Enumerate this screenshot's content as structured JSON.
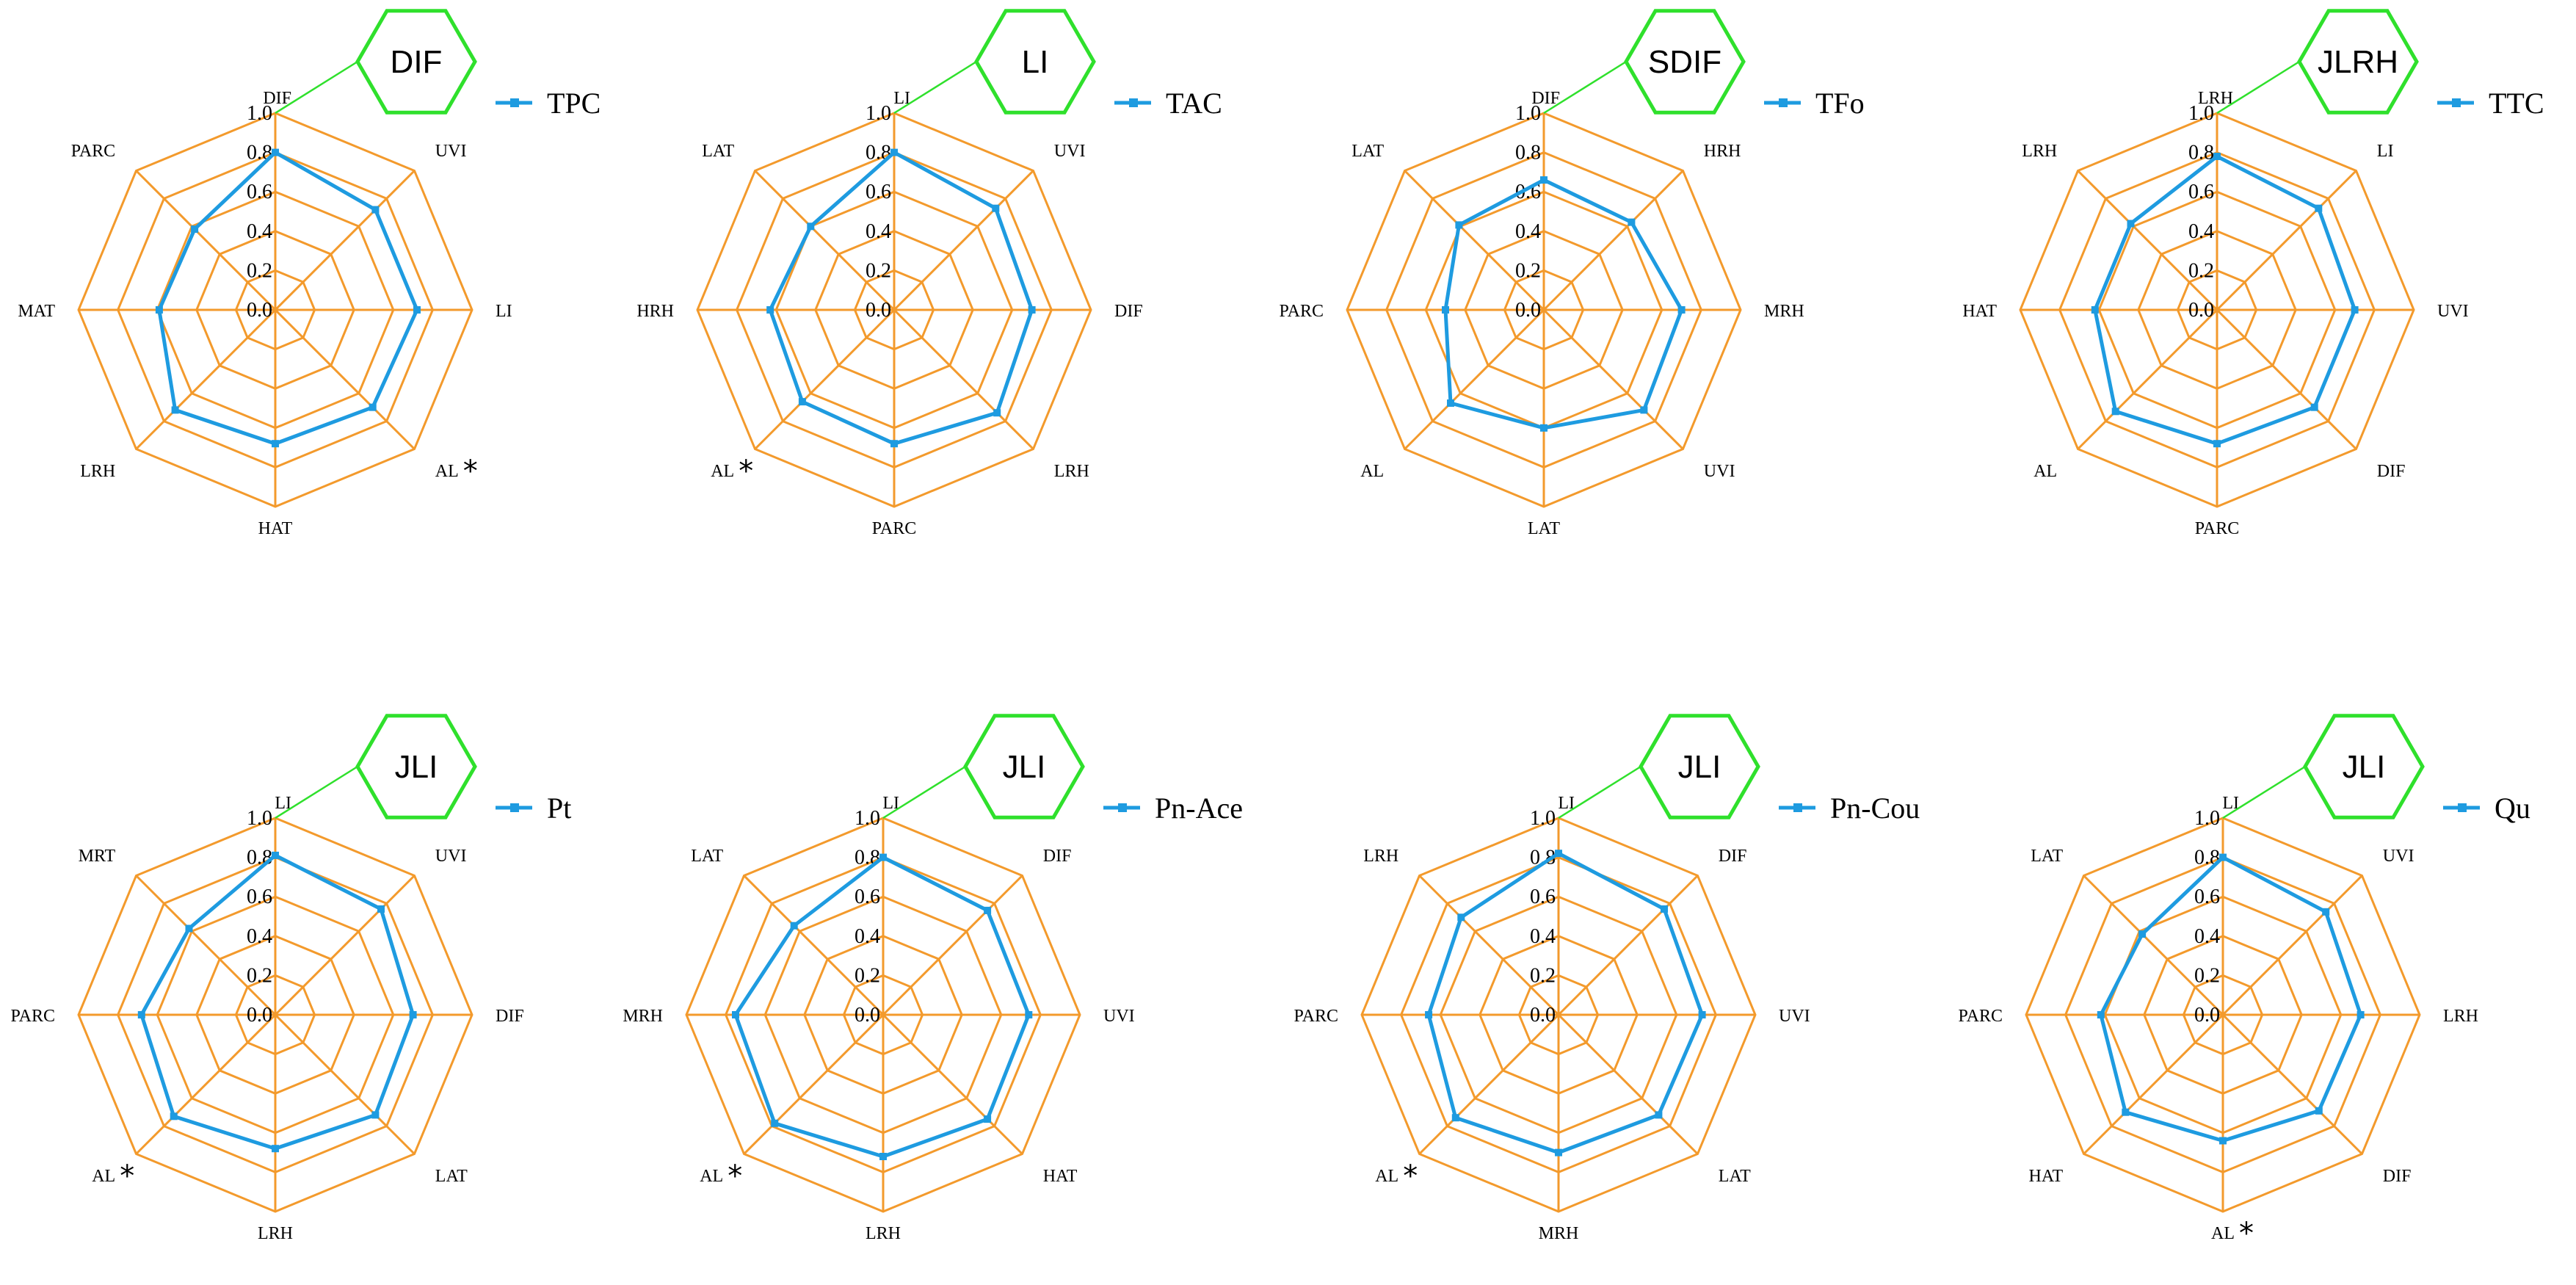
{
  "colors": {
    "grid": "#F39A2C",
    "series": "#1E9BE0",
    "hexagon": "#2FE02C",
    "text": "#000000"
  },
  "icons": {
    "legend_marker": "square-marker-icon",
    "badge": "hexagon-icon"
  },
  "chart_data": [
    {
      "type": "radar",
      "badge": "DIF",
      "series": [
        {
          "name": "TPC",
          "values": [
            0.8,
            0.72,
            0.72,
            0.7,
            0.68,
            0.72,
            0.59,
            0.58
          ]
        }
      ],
      "axes": [
        "DIF",
        "UVI",
        "LI",
        "AL",
        "HAT",
        "LRH",
        "MAT",
        "PARC"
      ],
      "significant": [
        "AL"
      ],
      "ticks": [
        "0.0",
        "0.2",
        "0.4",
        "0.6",
        "0.8",
        "1.0"
      ],
      "rlim": [
        0,
        1
      ],
      "grid": true,
      "legend": "top-right"
    },
    {
      "type": "radar",
      "badge": "LI",
      "series": [
        {
          "name": "TAC",
          "values": [
            0.8,
            0.73,
            0.7,
            0.74,
            0.68,
            0.66,
            0.63,
            0.6
          ]
        }
      ],
      "axes": [
        "LI",
        "UVI",
        "DIF",
        "LRH",
        "PARC",
        "AL",
        "HRH",
        "LAT"
      ],
      "significant": [
        "AL"
      ],
      "ticks": [
        "0.0",
        "0.2",
        "0.4",
        "0.6",
        "0.8",
        "1.0"
      ],
      "rlim": [
        0,
        1
      ],
      "grid": true,
      "legend": "top-right"
    },
    {
      "type": "radar",
      "badge": "SDIF",
      "series": [
        {
          "name": "TFo",
          "values": [
            0.66,
            0.63,
            0.7,
            0.72,
            0.6,
            0.67,
            0.5,
            0.61
          ]
        }
      ],
      "axes": [
        "DIF",
        "HRH",
        "MRH",
        "UVI",
        "LAT",
        "AL",
        "PARC",
        "LAT"
      ],
      "significant": [],
      "ticks": [
        "0.0",
        "0.2",
        "0.4",
        "0.6",
        "0.8",
        "1.0"
      ],
      "rlim": [
        0,
        1
      ],
      "grid": true,
      "legend": "top-right"
    },
    {
      "type": "radar",
      "badge": "JLRH",
      "series": [
        {
          "name": "TTC",
          "values": [
            0.78,
            0.73,
            0.7,
            0.7,
            0.68,
            0.73,
            0.62,
            0.62
          ]
        }
      ],
      "axes": [
        "LRH",
        "LI",
        "UVI",
        "DIF",
        "PARC",
        "AL",
        "HAT",
        "LRH"
      ],
      "significant": [],
      "ticks": [
        "0.0",
        "0.2",
        "0.4",
        "0.6",
        "0.8",
        "1.0"
      ],
      "rlim": [
        0,
        1
      ],
      "grid": true,
      "legend": "top-right"
    },
    {
      "type": "radar",
      "badge": "JLI",
      "series": [
        {
          "name": "Pt",
          "values": [
            0.81,
            0.76,
            0.7,
            0.72,
            0.68,
            0.73,
            0.68,
            0.62
          ]
        }
      ],
      "axes": [
        "LI",
        "UVI",
        "DIF",
        "LAT",
        "LRH",
        "AL",
        "PARC",
        "MRT"
      ],
      "significant": [
        "AL"
      ],
      "ticks": [
        "0.0",
        "0.2",
        "0.4",
        "0.6",
        "0.8",
        "1.0"
      ],
      "rlim": [
        0,
        1
      ],
      "grid": true,
      "legend": "top-right"
    },
    {
      "type": "radar",
      "badge": "JLI",
      "series": [
        {
          "name": "Pn-Ace",
          "values": [
            0.8,
            0.75,
            0.74,
            0.75,
            0.72,
            0.78,
            0.75,
            0.64
          ]
        }
      ],
      "axes": [
        "LI",
        "DIF",
        "UVI",
        "HAT",
        "LRH",
        "AL",
        "MRH",
        "LAT"
      ],
      "significant": [
        "AL"
      ],
      "ticks": [
        "0.0",
        "0.2",
        "0.4",
        "0.6",
        "0.8",
        "1.0"
      ],
      "rlim": [
        0,
        1
      ],
      "grid": true,
      "legend": "top-right"
    },
    {
      "type": "radar",
      "badge": "JLI",
      "series": [
        {
          "name": "Pn-Cou",
          "values": [
            0.82,
            0.76,
            0.73,
            0.72,
            0.7,
            0.74,
            0.66,
            0.7
          ]
        }
      ],
      "axes": [
        "LI",
        "DIF",
        "UVI",
        "LAT",
        "MRH",
        "AL",
        "PARC",
        "LRH"
      ],
      "significant": [
        "AL"
      ],
      "ticks": [
        "0.0",
        "0.2",
        "0.4",
        "0.6",
        "0.8",
        "1.0"
      ],
      "rlim": [
        0,
        1
      ],
      "grid": true,
      "legend": "top-right"
    },
    {
      "type": "radar",
      "badge": "JLI",
      "series": [
        {
          "name": "Qu",
          "values": [
            0.8,
            0.74,
            0.7,
            0.69,
            0.64,
            0.7,
            0.62,
            0.58
          ]
        }
      ],
      "axes": [
        "LI",
        "UVI",
        "LRH",
        "DIF",
        "AL",
        "HAT",
        "PARC",
        "LAT"
      ],
      "significant": [
        "AL"
      ],
      "ticks": [
        "0.0",
        "0.2",
        "0.4",
        "0.6",
        "0.8",
        "1.0"
      ],
      "rlim": [
        0,
        1
      ],
      "grid": true,
      "legend": "top-right"
    }
  ]
}
